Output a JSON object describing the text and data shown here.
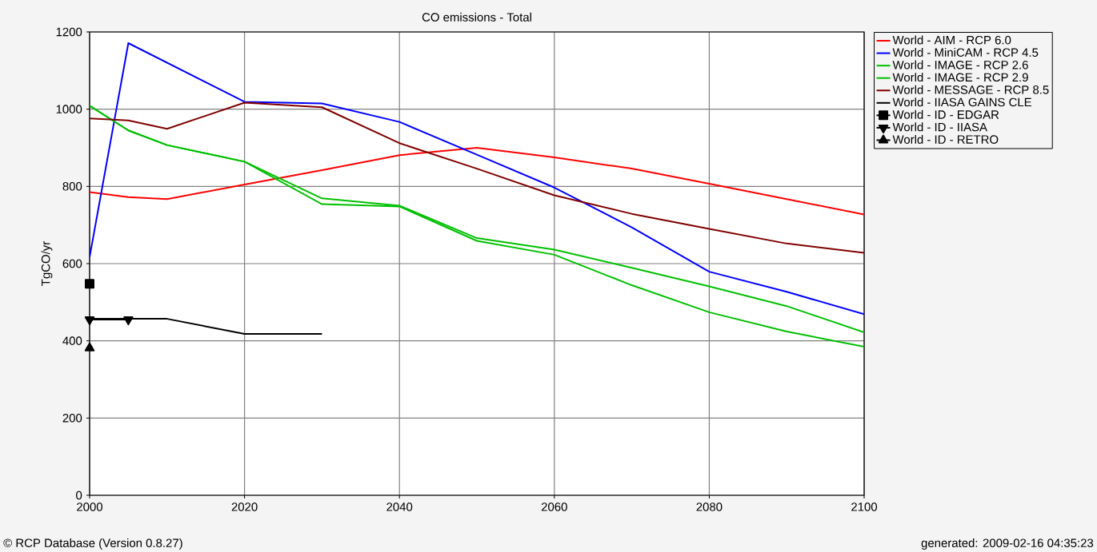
{
  "chart_data": {
    "type": "line",
    "title": "CO emissions - Total",
    "ylabel": "TgCO/yr",
    "x": [
      2000,
      2005,
      2010,
      2020,
      2030,
      2040,
      2050,
      2060,
      2070,
      2080,
      2090,
      2100
    ],
    "xlim": [
      2000,
      2100
    ],
    "xticks": [
      2000,
      2020,
      2040,
      2060,
      2080,
      2100
    ],
    "ylim": [
      0,
      1200
    ],
    "yticks": [
      0,
      200,
      400,
      600,
      800,
      1000,
      1200
    ],
    "grid": true,
    "legend": "right",
    "marker": "none",
    "line_style": "solid",
    "series": [
      {
        "name": "World - AIM - RCP 6.0",
        "color": "#ff0000",
        "values": [
          785,
          772,
          767,
          805,
          842,
          881,
          900,
          875,
          846,
          807,
          767,
          727
        ]
      },
      {
        "name": "World - MiniCAM - RCP 4.5",
        "color": "#0000ff",
        "values": [
          617,
          1171,
          null,
          1019,
          1015,
          967,
          882,
          797,
          694,
          579,
          527,
          469
        ]
      },
      {
        "name": "World - IMAGE - RCP 2.6",
        "color": "#00c000",
        "values": [
          1009,
          945,
          907,
          864,
          754,
          748,
          659,
          623,
          544,
          474,
          424,
          385
        ]
      },
      {
        "name": "World - IMAGE - RCP 2.9",
        "color": "#00c000",
        "values": [
          1009,
          945,
          907,
          864,
          769,
          750,
          666,
          636,
          589,
          541,
          490,
          422
        ]
      },
      {
        "name": "World - MESSAGE - RCP 8.5",
        "color": "#800000",
        "values": [
          976,
          971,
          949,
          1017,
          1005,
          912,
          846,
          777,
          729,
          690,
          652,
          628
        ]
      },
      {
        "name": "World - IIASA GAINS CLE",
        "color": "#000000",
        "x": [
          2000,
          2005,
          2010,
          2020,
          2030
        ],
        "values": [
          457,
          457,
          457,
          418,
          418
        ]
      },
      {
        "name": "World - ID - EDGAR",
        "color": "#000000",
        "marker": "square",
        "x": [
          2000
        ],
        "values": [
          548
        ]
      },
      {
        "name": "World - ID - IIASA",
        "color": "#000000",
        "marker": "triangle down",
        "x": [
          2000,
          2005
        ],
        "values": [
          455,
          455
        ]
      },
      {
        "name": "World - ID - RETRO",
        "color": "#000000",
        "marker": "triangle",
        "x": [
          2000
        ],
        "values": [
          381
        ]
      }
    ],
    "annotations": [
      "© RCP Database (Version 0.8.27)",
      "generated: 2009-02-16 04:35:23"
    ]
  }
}
